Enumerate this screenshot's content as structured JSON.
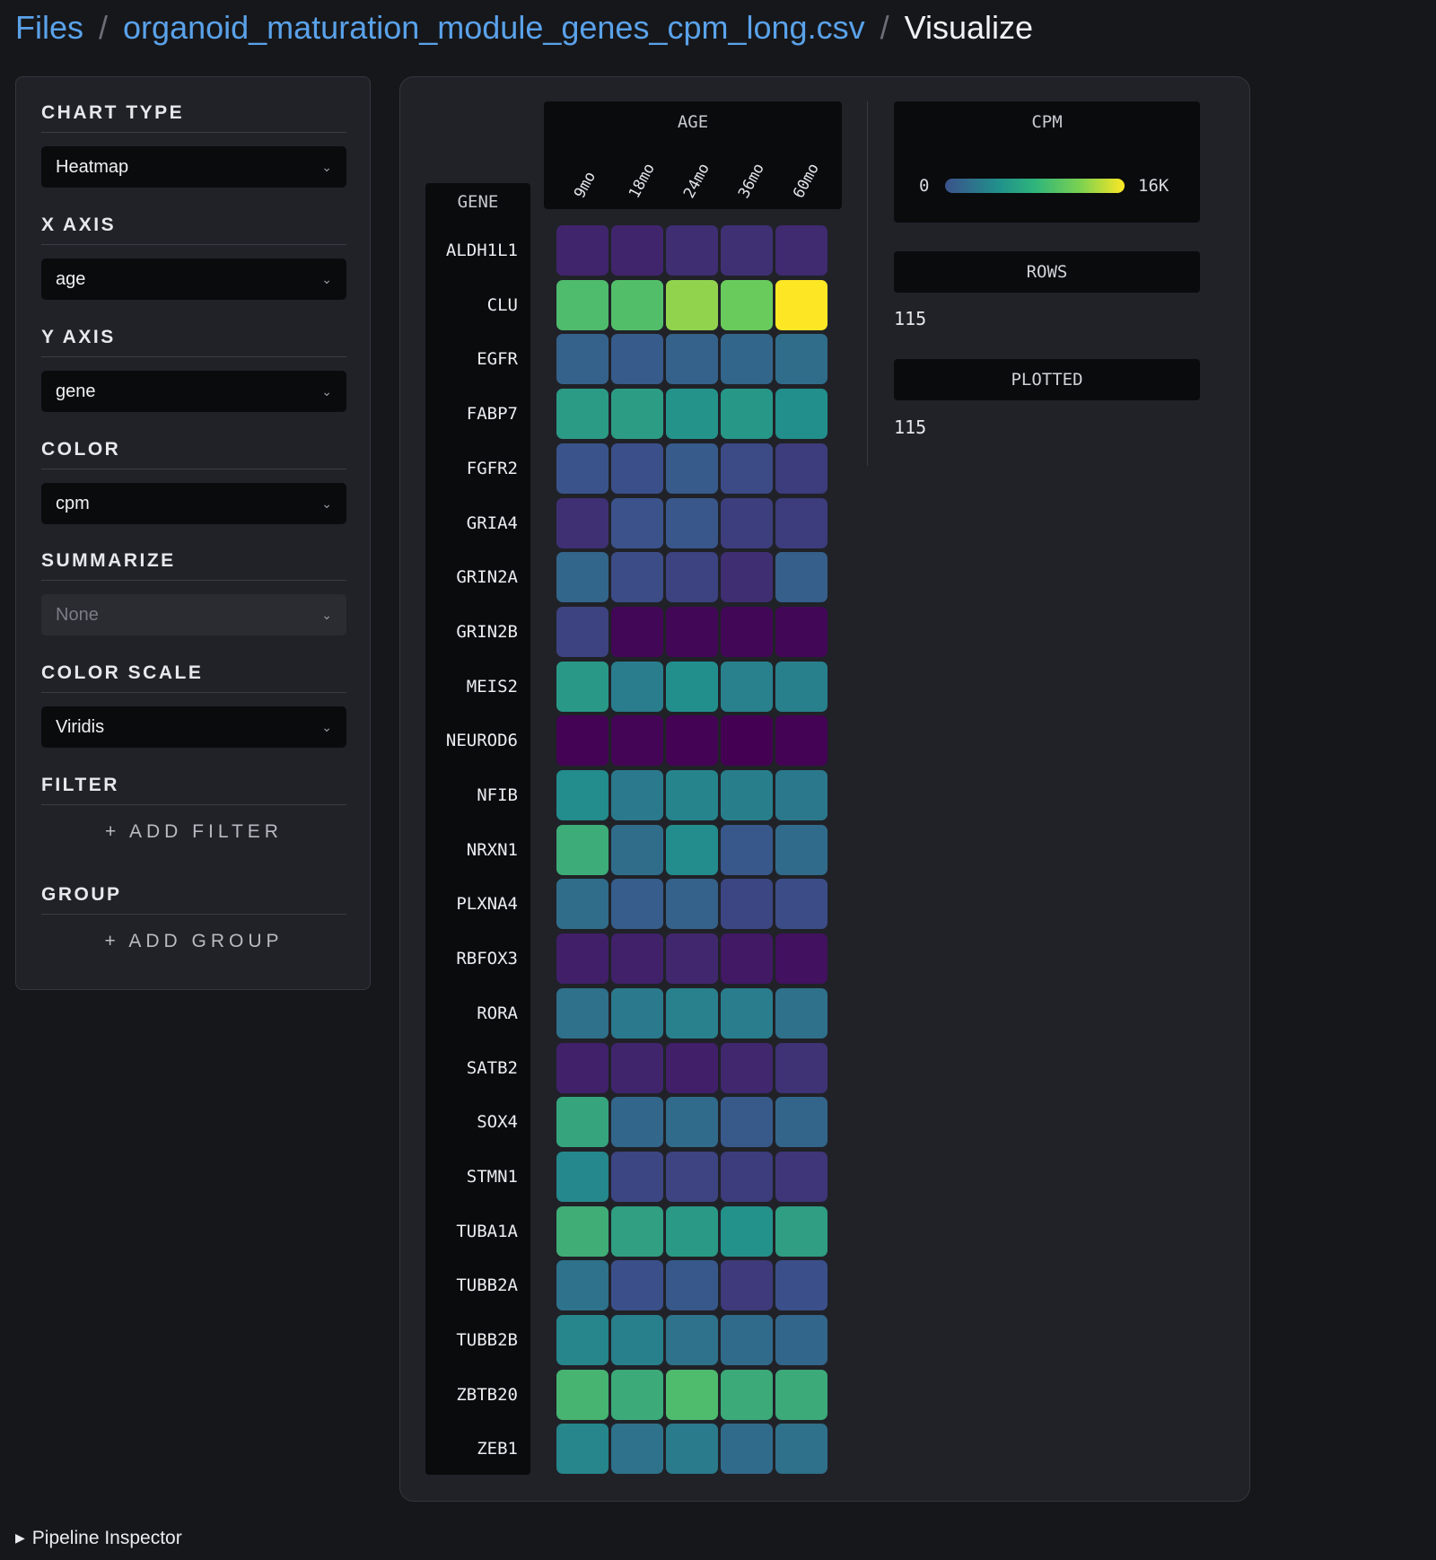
{
  "breadcrumb": {
    "root": "Files",
    "file": "organoid_maturation_module_genes_cpm_long.csv",
    "current": "Visualize",
    "separator": "/"
  },
  "sidebar": {
    "chart_type": {
      "label": "CHART TYPE",
      "value": "Heatmap"
    },
    "x_axis": {
      "label": "X AXIS",
      "value": "age"
    },
    "y_axis": {
      "label": "Y AXIS",
      "value": "gene"
    },
    "color": {
      "label": "COLOR",
      "value": "cpm"
    },
    "summarize": {
      "label": "SUMMARIZE",
      "value": "None"
    },
    "color_scale": {
      "label": "COLOR SCALE",
      "value": "Viridis"
    },
    "filter": {
      "label": "FILTER",
      "action": "+ ADD FILTER"
    },
    "group": {
      "label": "GROUP",
      "action": "+ ADD GROUP"
    }
  },
  "chart_data": {
    "type": "heatmap",
    "x_label": "AGE",
    "y_label": "GENE",
    "color_label": "CPM",
    "x": [
      "9mo",
      "18mo",
      "24mo",
      "36mo",
      "60mo"
    ],
    "y": [
      "ALDH1L1",
      "CLU",
      "EGFR",
      "FABP7",
      "FGFR2",
      "GRIA4",
      "GRIN2A",
      "GRIN2B",
      "MEIS2",
      "NEUROD6",
      "NFIB",
      "NRXN1",
      "PLXNA4",
      "RBFOX3",
      "RORA",
      "SATB2",
      "SOX4",
      "STMN1",
      "TUBA1A",
      "TUBB2A",
      "TUBB2B",
      "ZBTB20",
      "ZEB1"
    ],
    "values": [
      [
        1800,
        1800,
        2200,
        2300,
        2000
      ],
      [
        11000,
        11200,
        13300,
        12300,
        16000
      ],
      [
        5000,
        4600,
        5000,
        5300,
        5700
      ],
      [
        8700,
        8800,
        8200,
        8400,
        7900
      ],
      [
        4100,
        3900,
        4600,
        3600,
        2900
      ],
      [
        2300,
        4000,
        4300,
        3000,
        2900
      ],
      [
        5300,
        3700,
        3200,
        2200,
        4800
      ],
      [
        3200,
        300,
        300,
        300,
        300
      ],
      [
        8500,
        6700,
        7900,
        7000,
        6900
      ],
      [
        100,
        200,
        100,
        0,
        100
      ],
      [
        7700,
        6500,
        7200,
        6800,
        6400
      ],
      [
        9900,
        5700,
        7700,
        4400,
        5600
      ],
      [
        5700,
        4700,
        5000,
        3400,
        3700
      ],
      [
        1500,
        1600,
        1900,
        1200,
        800
      ],
      [
        5900,
        6500,
        7000,
        6700,
        5900
      ],
      [
        1600,
        1800,
        1500,
        1900,
        2400
      ],
      [
        9400,
        5300,
        5600,
        4500,
        5200
      ],
      [
        7400,
        3400,
        3300,
        2900,
        2600
      ],
      [
        10000,
        9000,
        8600,
        8100,
        8900
      ],
      [
        6000,
        3900,
        4400,
        2800,
        3900
      ],
      [
        7300,
        6900,
        6000,
        5600,
        5300
      ],
      [
        10500,
        9800,
        11000,
        9800,
        9800
      ],
      [
        7300,
        6000,
        6600,
        5600,
        5900
      ]
    ],
    "color_scale": "Viridis",
    "color_range": [
      0,
      16000
    ],
    "legend_min_label": "0",
    "legend_max_label": "16K"
  },
  "stats": {
    "rows_label": "ROWS",
    "rows_value": "115",
    "plotted_label": "PLOTTED",
    "plotted_value": "115"
  },
  "footer": {
    "pipeline_label": "Pipeline Inspector"
  }
}
